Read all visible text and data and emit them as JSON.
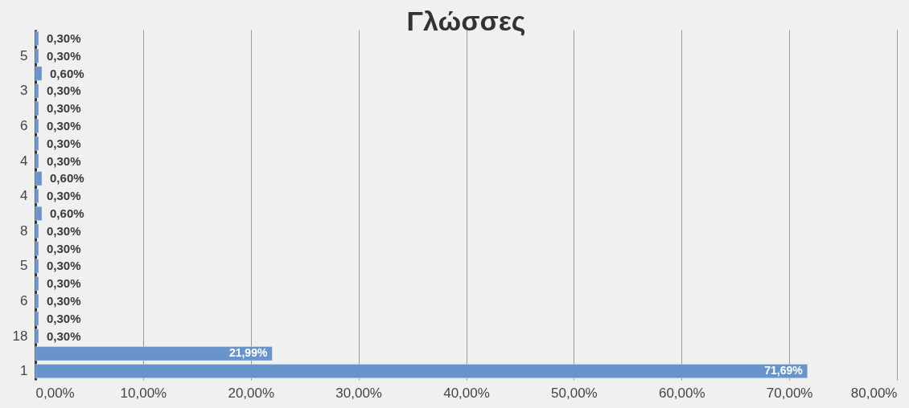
{
  "chart_data": {
    "type": "bar",
    "orientation": "horizontal",
    "title": "Γλώσσες",
    "categories": [
      null,
      "5",
      null,
      "3",
      null,
      "6",
      null,
      "4",
      null,
      "4",
      null,
      "8",
      null,
      "5",
      null,
      "6",
      null,
      "18",
      null,
      "1"
    ],
    "values": [
      0.3,
      0.3,
      0.6,
      0.3,
      0.3,
      0.3,
      0.3,
      0.3,
      0.6,
      0.3,
      0.6,
      0.3,
      0.3,
      0.3,
      0.3,
      0.3,
      0.3,
      0.3,
      21.99,
      71.69
    ],
    "value_labels": [
      "0,30%",
      "0,30%",
      "0,60%",
      "0,30%",
      "0,30%",
      "0,30%",
      "0,30%",
      "0,30%",
      "0,60%",
      "0,30%",
      "0,60%",
      "0,30%",
      "0,30%",
      "0,30%",
      "0,30%",
      "0,30%",
      "0,30%",
      "0,30%",
      "21,99%",
      "71,69%"
    ],
    "color": "#6893cb",
    "xlim": [
      0,
      80
    ],
    "xticks": [
      {
        "value": 0,
        "label": "0,00%"
      },
      {
        "value": 10,
        "label": "10,00%"
      },
      {
        "value": 20,
        "label": "20,00%"
      },
      {
        "value": 30,
        "label": "30,00%"
      },
      {
        "value": 40,
        "label": "40,00%"
      },
      {
        "value": 50,
        "label": "50,00%"
      },
      {
        "value": 60,
        "label": "60,00%"
      },
      {
        "value": 70,
        "label": "70,00%"
      },
      {
        "value": 80,
        "label": "80,00%"
      }
    ],
    "grid": "x"
  }
}
